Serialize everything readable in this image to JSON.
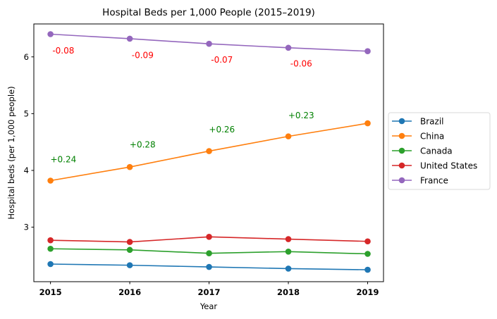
{
  "chart_data": {
    "type": "line",
    "title": "Hospital Beds per 1,000 People (2015–2019)",
    "xlabel": "Year",
    "ylabel": "Hospital beds (per 1,000 people)",
    "x": [
      2015,
      2016,
      2017,
      2018,
      2019
    ],
    "xticks": [
      "2015",
      "2016",
      "2017",
      "2018",
      "2019"
    ],
    "yticks": [
      3,
      4,
      5,
      6
    ],
    "ylim": [
      2.04,
      6.58
    ],
    "xlim": [
      2014.79,
      2019.2
    ],
    "grid": false,
    "legend_position": "center-right-outside",
    "series": [
      {
        "name": "Brazil",
        "color": "#1f77b4",
        "values": [
          2.35,
          2.33,
          2.3,
          2.27,
          2.25
        ]
      },
      {
        "name": "China",
        "color": "#ff7f0e",
        "values": [
          3.82,
          4.06,
          4.34,
          4.6,
          4.83
        ]
      },
      {
        "name": "Canada",
        "color": "#2ca02c",
        "values": [
          2.62,
          2.6,
          2.54,
          2.57,
          2.53
        ]
      },
      {
        "name": "United States",
        "color": "#d62728",
        "values": [
          2.77,
          2.74,
          2.83,
          2.79,
          2.75
        ]
      },
      {
        "name": "France",
        "color": "#9467bd",
        "values": [
          6.4,
          6.32,
          6.23,
          6.16,
          6.1
        ]
      }
    ],
    "annotations": [
      {
        "series": "China",
        "between": [
          2015,
          2016
        ],
        "text": "+0.24",
        "color": "#008000",
        "placement": "above"
      },
      {
        "series": "China",
        "between": [
          2016,
          2017
        ],
        "text": "+0.28",
        "color": "#008000",
        "placement": "above"
      },
      {
        "series": "China",
        "between": [
          2017,
          2018
        ],
        "text": "+0.26",
        "color": "#008000",
        "placement": "above"
      },
      {
        "series": "China",
        "between": [
          2018,
          2019
        ],
        "text": "+0.23",
        "color": "#008000",
        "placement": "above"
      },
      {
        "series": "France",
        "between": [
          2015,
          2016
        ],
        "text": "-0.08",
        "color": "#ff0000",
        "placement": "below"
      },
      {
        "series": "France",
        "between": [
          2016,
          2017
        ],
        "text": "-0.09",
        "color": "#ff0000",
        "placement": "below"
      },
      {
        "series": "France",
        "between": [
          2017,
          2018
        ],
        "text": "-0.07",
        "color": "#ff0000",
        "placement": "below"
      },
      {
        "series": "France",
        "between": [
          2018,
          2019
        ],
        "text": "-0.06",
        "color": "#ff0000",
        "placement": "below"
      }
    ]
  }
}
